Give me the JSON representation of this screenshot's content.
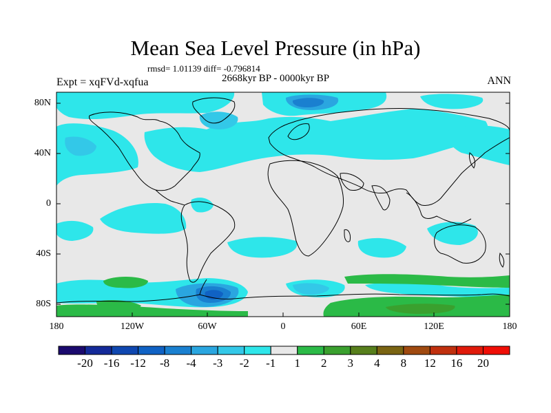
{
  "title": "Mean Sea Level Pressure (in hPa)",
  "stats_text": "rmsd= 1.01139  diff= -0.796814",
  "period_text": "2668kyr BP - 0000kyr BP",
  "experiment_text": "Expt = xqFVd-xqfua",
  "season_text": "ANN",
  "lat_labels": [
    "80N",
    "40N",
    "0",
    "40S",
    "80S"
  ],
  "lon_labels": [
    "180",
    "120W",
    "60W",
    "0",
    "60E",
    "120E",
    "180"
  ],
  "colorbar": {
    "labels": [
      "-20",
      "-16",
      "-12",
      "-8",
      "-4",
      "-3",
      "-2",
      "-1",
      "1",
      "2",
      "3",
      "4",
      "8",
      "12",
      "16",
      "20"
    ],
    "colors": [
      "#1b0a6e",
      "#142a99",
      "#0f47b0",
      "#1062c4",
      "#1a80d0",
      "#2aa6e0",
      "#33c8e8",
      "#2ee6ea",
      "#e8e8e8",
      "#2bba47",
      "#3aa02e",
      "#577f1c",
      "#7a6412",
      "#a04a10",
      "#c0300e",
      "#e01a0a",
      "#f00e06"
    ]
  },
  "map_colors": {
    "neutral": "#e8e8e8",
    "light_neg": "#2ee6ea",
    "mid_neg": "#33c8e8",
    "neg_3": "#2aa6e0",
    "neg_4": "#1a80d0",
    "neg_8": "#1062c4",
    "pos_1": "#2bba47",
    "pos_2": "#3aa02e",
    "coast": "#000000"
  }
}
